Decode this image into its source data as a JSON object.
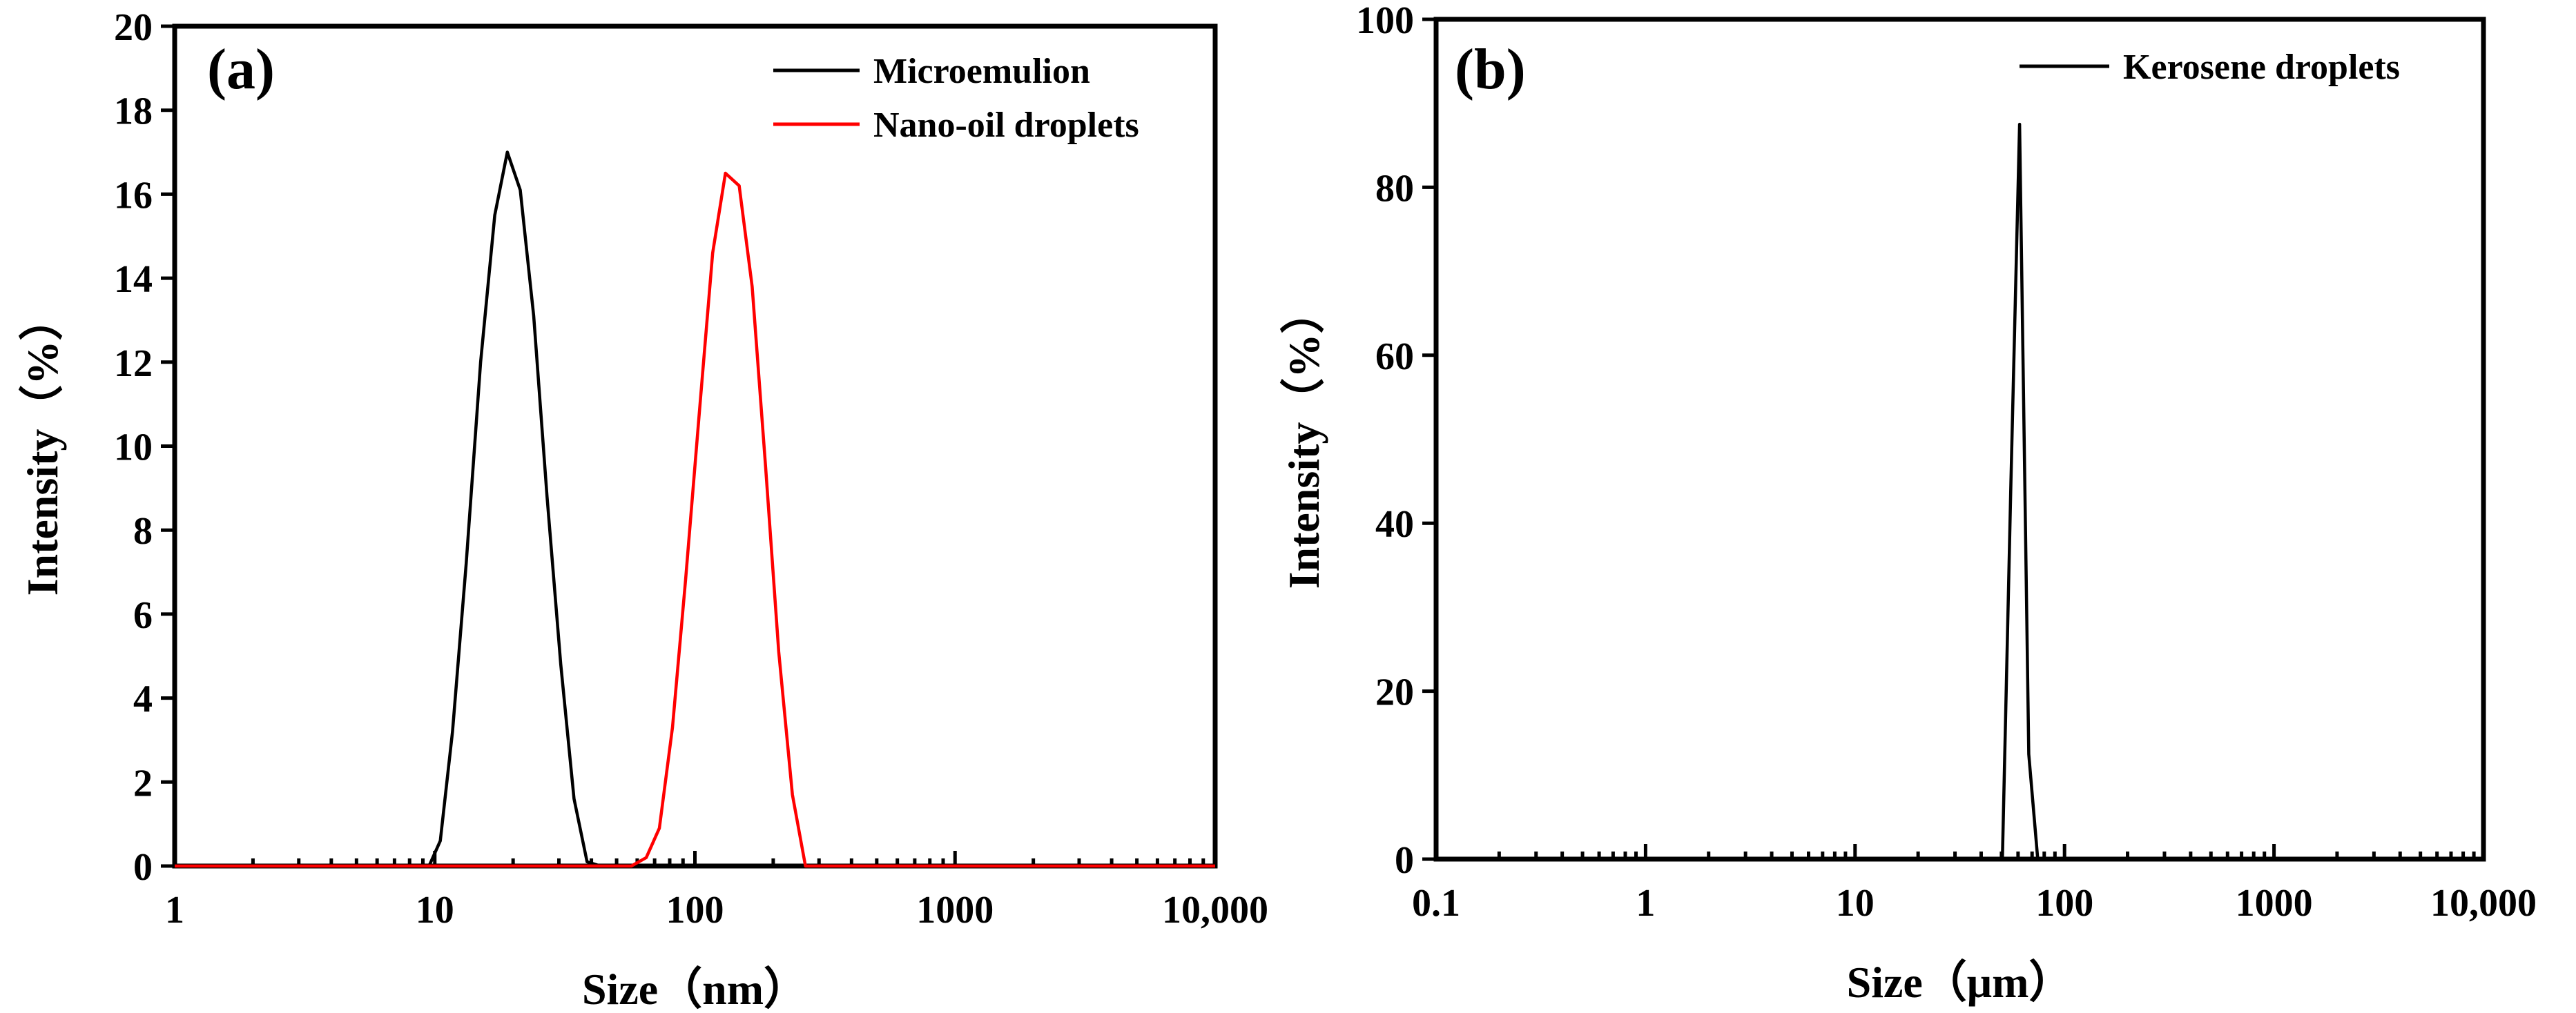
{
  "chart_data": [
    {
      "id": "a",
      "type": "line",
      "panel_label": "(a)",
      "x_scale": "log",
      "xlim": [
        1,
        10000
      ],
      "ylim": [
        0,
        20
      ],
      "xlabel": "Size（nm）",
      "ylabel": "Intensity（%）",
      "x_tick_values": [
        1,
        10,
        100,
        1000,
        10000
      ],
      "x_tick_labels": [
        "1",
        "10",
        "100",
        "1000",
        "10,000"
      ],
      "y_tick_values": [
        0,
        2,
        4,
        6,
        8,
        10,
        12,
        14,
        16,
        18,
        20
      ],
      "y_tick_labels": [
        "0",
        "2",
        "4",
        "6",
        "8",
        "10",
        "12",
        "14",
        "16",
        "18",
        "20"
      ],
      "legend_position": "top-right",
      "series": [
        {
          "name": "Microemulion",
          "color": "#000000",
          "x": [
            1,
            9.5,
            10.5,
            11.7,
            13.2,
            15.0,
            17.0,
            19.0,
            21.3,
            24.0,
            27.0,
            30.5,
            34.3,
            38.5,
            43.4,
            48.8,
            55.0,
            58.0,
            10000
          ],
          "y": [
            0,
            0,
            0.6,
            3.2,
            7.2,
            12.0,
            15.5,
            17.0,
            16.1,
            13.1,
            8.8,
            4.8,
            1.6,
            0.1,
            0,
            0,
            0,
            0,
            0
          ]
        },
        {
          "name": "Nano-oil droplets",
          "color": "#ff0000",
          "x": [
            1,
            57,
            65,
            73,
            82,
            92,
            104,
            117,
            131,
            148,
            166,
            187,
            210,
            237,
            266,
            300,
            340,
            10000
          ],
          "y": [
            0,
            0,
            0.2,
            0.9,
            3.3,
            6.8,
            10.8,
            14.6,
            16.5,
            16.2,
            13.8,
            9.5,
            5.1,
            1.7,
            0,
            0,
            0,
            0
          ]
        }
      ]
    },
    {
      "id": "b",
      "type": "line",
      "panel_label": "(b)",
      "x_scale": "log",
      "xlim": [
        0.1,
        10000
      ],
      "ylim": [
        0,
        100
      ],
      "xlabel": "Size（μm）",
      "ylabel": "Intensity（%）",
      "x_tick_values": [
        0.1,
        1,
        10,
        100,
        1000,
        10000
      ],
      "x_tick_labels": [
        "0.1",
        "1",
        "10",
        "100",
        "1000",
        "10,000"
      ],
      "y_tick_values": [
        0,
        20,
        40,
        60,
        80,
        100
      ],
      "y_tick_labels": [
        "0",
        "20",
        "40",
        "60",
        "80",
        "100"
      ],
      "legend_position": "top-right",
      "series": [
        {
          "name": "Kerosene droplets",
          "color": "#000000",
          "x": [
            0.1,
            50.5,
            55.5,
            61.0,
            67.5,
            74.5,
            80,
            10000
          ],
          "y": [
            0,
            0,
            45,
            87.5,
            12.5,
            0,
            0,
            0
          ]
        }
      ]
    }
  ]
}
